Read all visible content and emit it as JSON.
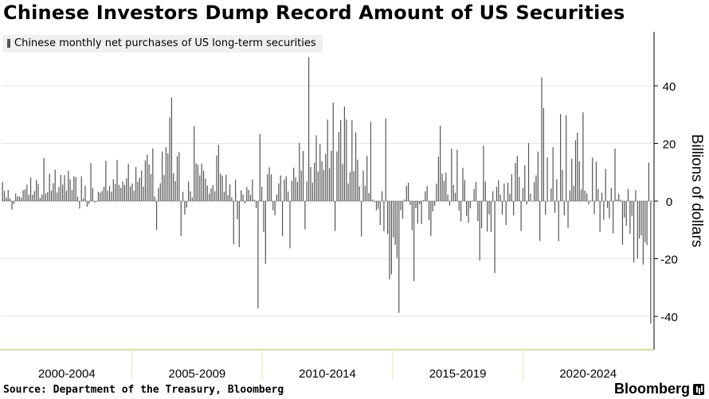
{
  "title": "Chinese Investors Dump Record Amount of US Securities",
  "legend": {
    "label": "Chinese monthly net purchases of US long-term securities",
    "color": "#555555"
  },
  "source": "Source: Department of the Treasury, Bloomberg",
  "brand": "Bloomberg",
  "colors": {
    "bar": "#555555",
    "grid": "#e6e6e6",
    "axis": "#bde07a",
    "period_divider": "#d8ecb0"
  },
  "chart_data": {
    "type": "bar",
    "title": "Chinese Investors Dump Record Amount of US Securities",
    "ylabel": "Billions of dollars",
    "ylim": [
      -52,
      58
    ],
    "yticks": [
      -40,
      -20,
      0,
      20,
      40
    ],
    "xlim": [
      2000.0,
      2025.0
    ],
    "period_labels": [
      "2000-2004",
      "2005-2009",
      "2010-2014",
      "2015-2019",
      "2020-2024"
    ],
    "grid": true,
    "legend_position": "top-left",
    "series": [
      {
        "name": "Chinese monthly net purchases of US long-term securities",
        "x_start": "2000-01",
        "frequency": "monthly",
        "values": [
          6.6,
          3.5,
          1.2,
          3.9,
          1.0,
          -3.0,
          -1.0,
          2.6,
          1.6,
          1.6,
          1.2,
          3.8,
          4.1,
          5.7,
          2.2,
          8.2,
          2.2,
          3.5,
          7.4,
          6.0,
          1.1,
          2.2,
          15.0,
          2.6,
          3.1,
          9.5,
          3.6,
          6.2,
          10.9,
          3.0,
          4.9,
          9.1,
          5.7,
          9.0,
          3.6,
          10.5,
          7.6,
          3.9,
          8.6,
          8.3,
          1.5,
          -2.6,
          8.6,
          0.9,
          5.3,
          -2.0,
          -1.0,
          13.2,
          4.5,
          -0.5,
          -0.2,
          3.3,
          2.9,
          3.5,
          5.0,
          14.0,
          3.6,
          5.2,
          3.2,
          7.6,
          6.0,
          14.3,
          5.6,
          4.6,
          6.8,
          5.6,
          7.9,
          12.9,
          5.1,
          6.1,
          3.7,
          11.8,
          6.7,
          8.1,
          10.6,
          5.0,
          14.1,
          16.1,
          12.7,
          9.4,
          18.3,
          1.6,
          -10.0,
          4.6,
          6.2,
          17.2,
          9.0,
          18.7,
          16.6,
          29.0,
          36.0,
          9.6,
          6.9,
          15.6,
          17.0,
          -12.2,
          3.2,
          -4.7,
          -2.3,
          6.8,
          3.4,
          1.2,
          26.0,
          13.1,
          12.6,
          8.9,
          13.0,
          10.6,
          7.8,
          5.4,
          2.6,
          4.4,
          5.5,
          3.4,
          15.8,
          19.5,
          9.5,
          8.8,
          3.3,
          9.2,
          2.1,
          5.9,
          1.3,
          -15.0,
          7.4,
          -6.3,
          -16.0,
          3.7,
          2.3,
          -0.8,
          4.9,
          3.9,
          2.2,
          7.5,
          0.5,
          -2.4,
          -37.2,
          23.3,
          5.0,
          -10.7,
          -21.8,
          9.3,
          11.7,
          9.3,
          -3.2,
          -4.9,
          2.3,
          6.1,
          8.9,
          -12.1,
          7.5,
          8.6,
          3.4,
          -16.4,
          7.1,
          11.6,
          8.2,
          6.7,
          20.2,
          10.6,
          17.4,
          -9.8,
          6.8,
          50.0,
          11.8,
          6.4,
          13.3,
          22.8,
          10.3,
          19.8,
          13.8,
          10.8,
          16.4,
          28.3,
          11.4,
          17.4,
          34.2,
          -10.4,
          17.2,
          24.0,
          28.1,
          12.8,
          32.8,
          28.3,
          6.1,
          10.0,
          28.0,
          10.4,
          23.9,
          14.4,
          5.1,
          -12.3,
          10.6,
          5.3,
          15.7,
          2.8,
          27.5,
          0.5,
          -0.4,
          -3.2,
          -2.7,
          -8.3,
          3.4,
          -10.5,
          28.7,
          -11.5,
          -27.2,
          -25.4,
          -12.6,
          -15.2,
          -19.8,
          -38.8,
          -3.2,
          -6.1,
          0.5,
          5.3,
          6.4,
          -1.3,
          -10.1,
          -27.8,
          -2.5,
          -7.8,
          -1.1,
          -8.0,
          0.4,
          3.4,
          5.3,
          -6.6,
          -12.1,
          -3.6,
          -1.6,
          6.0,
          15.4,
          26.2,
          9.5,
          7.0,
          9.9,
          2.2,
          -1.6,
          18.2,
          5.6,
          2.9,
          17.8,
          -3.3,
          -7.1,
          11.6,
          7.3,
          -5.2,
          -7.6,
          -2.5,
          0.1,
          4.2,
          6.7,
          -6.9,
          -20.6,
          -9.4,
          19.3,
          6.8,
          -10.6,
          -4.6,
          -10.7,
          3.4,
          -25.0,
          4.9,
          7.2,
          2.2,
          -4.7,
          6.1,
          -8.3,
          6.4,
          2.6,
          9.3,
          -5.0,
          13.2,
          15.7,
          8.4,
          -10.4,
          4.6,
          12.4,
          -1.2,
          20.1,
          2.6,
          0.1,
          6.6,
          8.9,
          17.2,
          -13.8,
          42.9,
          32.3,
          -4.7,
          15.2,
          -0.1,
          4.4,
          18.7,
          -4.0,
          7.6,
          -13.9,
          30.2,
          10.8,
          -5.0,
          29.8,
          -9.3,
          3.7,
          14.7,
          5.3,
          21.1,
          23.8,
          13.8,
          4.0,
          30.8,
          3.6,
          2.6,
          -1.1,
          0.2,
          15.1,
          -4.5,
          13.7,
          4.2,
          -10.7,
          2.9,
          -6.5,
          11.2,
          -2.4,
          -6.0,
          4.5,
          -11.2,
          18.2,
          0.5,
          2.5,
          0.5,
          -15.1,
          -5.7,
          -8.6,
          4.2,
          -11.4,
          -5.1,
          -21.3,
          3.8,
          -20.0,
          -13.0,
          -11.9,
          -22.0,
          -14.3,
          -15.3,
          13.4,
          -42.5
        ]
      }
    ]
  }
}
